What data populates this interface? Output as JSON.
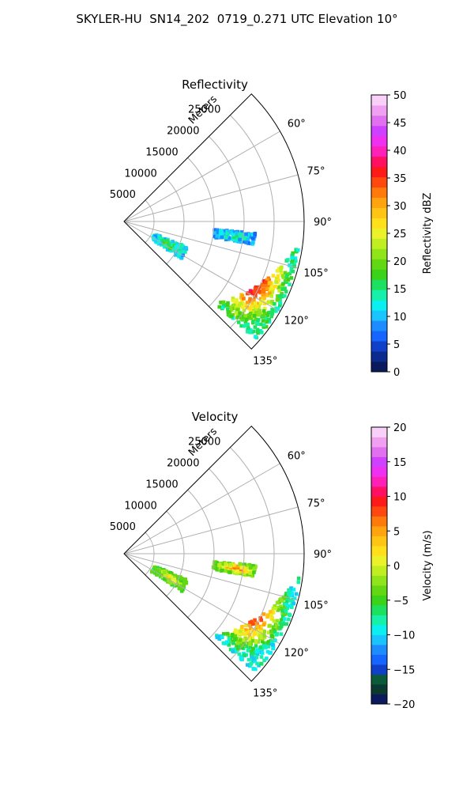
{
  "figure": {
    "suptitle": "SKYLER-HU  SN14_202  0719_0.271 UTC Elevation 10°"
  },
  "chart_data": [
    {
      "type": "heatmap",
      "title": "Reflectivity",
      "radial_axis_label": "Meters",
      "radial_ticks": [
        5000,
        10000,
        15000,
        20000,
        25000
      ],
      "radial_limit": [
        0,
        30000
      ],
      "azimuth_ticks": [
        60,
        75,
        90,
        105,
        120,
        135
      ],
      "azimuth_range_deg": [
        45,
        135
      ],
      "grid": true,
      "colorbar": {
        "label": "Reflectivity dBZ",
        "ticks": [
          0,
          5,
          10,
          15,
          20,
          25,
          30,
          35,
          40,
          45,
          50
        ],
        "range": [
          0,
          50
        ],
        "colors": [
          "#0a1a5c",
          "#0b2b8f",
          "#1040c8",
          "#1565ff",
          "#1c8cff",
          "#19c4ff",
          "#0af0f0",
          "#17f0a8",
          "#1ee060",
          "#3bd21a",
          "#63d812",
          "#8fe41a",
          "#c0ee20",
          "#ecf22a",
          "#ffe01a",
          "#ffc414",
          "#ffa30f",
          "#ff7a0a",
          "#ff4810",
          "#ff1a1a",
          "#ff1060",
          "#ff20b8",
          "#f030f0",
          "#d040ff",
          "#e070f0",
          "#f0a0f0",
          "#f8d0f8"
        ]
      },
      "echo_regions": [
        {
          "azimuth_deg": [
            97,
            132
          ],
          "range_m": [
            18000,
            29500
          ],
          "peak_value": 43
        },
        {
          "azimuth_deg": [
            112,
            123
          ],
          "range_m": [
            5500,
            11500
          ],
          "peak_value": 18
        },
        {
          "azimuth_deg": [
            95,
            100
          ],
          "range_m": [
            15000,
            22000
          ],
          "peak_value": 15
        }
      ]
    },
    {
      "type": "heatmap",
      "title": "Velocity",
      "radial_axis_label": "Meters",
      "radial_ticks": [
        5000,
        10000,
        15000,
        20000,
        25000
      ],
      "radial_limit": [
        0,
        30000
      ],
      "azimuth_ticks": [
        60,
        75,
        90,
        105,
        120,
        135
      ],
      "azimuth_range_deg": [
        45,
        135
      ],
      "grid": true,
      "colorbar": {
        "label": "Velocity (m/s)",
        "ticks": [
          -20,
          -15,
          -10,
          -5,
          0,
          5,
          10,
          15,
          20
        ],
        "range": [
          -20,
          20
        ],
        "colors": [
          "#0a1a5c",
          "#0c3a30",
          "#0b5a3c",
          "#1040c8",
          "#1565ff",
          "#1c8cff",
          "#19c4ff",
          "#0af0f0",
          "#17f0a8",
          "#1ee060",
          "#3bd21a",
          "#63d812",
          "#8fe41a",
          "#c0ee20",
          "#ecf22a",
          "#ffe01a",
          "#ffc414",
          "#ffa30f",
          "#ff7a0a",
          "#ff4810",
          "#ff1a1a",
          "#ff1060",
          "#ff20b8",
          "#f030f0",
          "#d040ff",
          "#e070f0",
          "#f0a0f0",
          "#f8d0f8"
        ]
      },
      "echo_regions": [
        {
          "azimuth_deg": [
            97,
            132
          ],
          "range_m": [
            18000,
            29500
          ],
          "peak_value": 12
        },
        {
          "azimuth_deg": [
            112,
            123
          ],
          "range_m": [
            5500,
            11500
          ],
          "peak_value": 4
        },
        {
          "azimuth_deg": [
            95,
            100
          ],
          "range_m": [
            15000,
            22000
          ],
          "peak_value": 8
        }
      ]
    }
  ]
}
